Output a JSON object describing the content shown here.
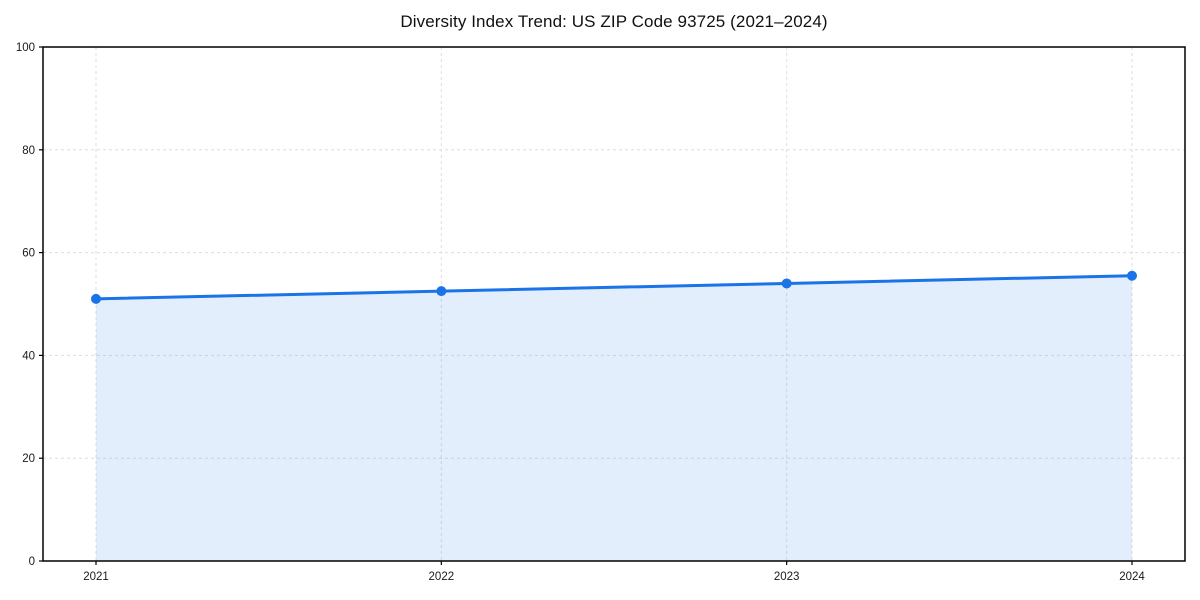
{
  "chart_data": {
    "type": "area",
    "title": "Diversity Index Trend: US ZIP Code 93725 (2021–2024)",
    "series_name": "Diversity Index",
    "x": [
      2021,
      2022,
      2023,
      2024
    ],
    "values": [
      51,
      52.5,
      54,
      55.5
    ],
    "xlabel": "",
    "ylabel": "",
    "ylim": [
      0,
      100
    ],
    "yticks": [
      0,
      20,
      40,
      60,
      80,
      100
    ],
    "xtick_labels": [
      "2021",
      "2022",
      "2023",
      "2024"
    ],
    "grid": true,
    "grid_style": "dashed",
    "legend": false,
    "colors": {
      "line": "#1a73e8",
      "marker": "#1a73e8",
      "fill": "rgba(26,115,232,0.12)",
      "grid": "#dedede",
      "axis": "#000000",
      "tick_label": "#1a1a1a",
      "title": "#111111",
      "background": "#ffffff"
    }
  }
}
